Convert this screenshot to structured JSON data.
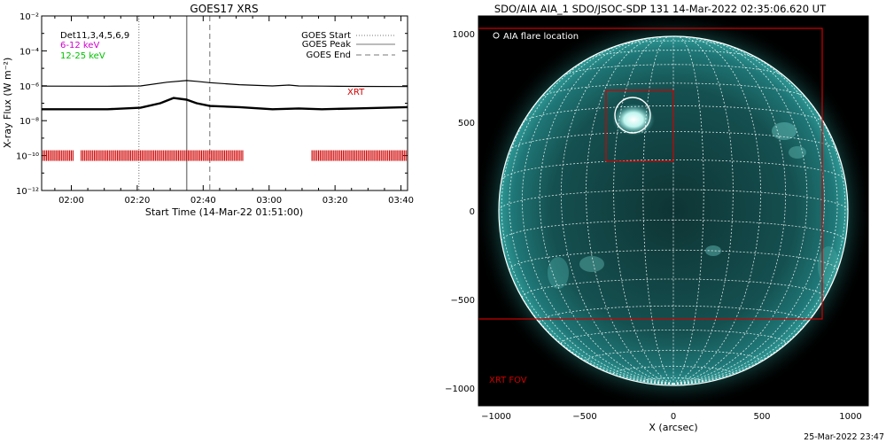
{
  "chart_data": [
    {
      "type": "line",
      "title": "GOES17 XRS",
      "xlabel": "Start Time (14-Mar-22 01:51:00)",
      "ylabel": "X-ray Flux (W m⁻²)",
      "y_scale": "log",
      "ylim": [
        1e-12,
        0.01
      ],
      "xlim_minutes": [
        0,
        111
      ],
      "x_ticks": [
        {
          "minute": 9,
          "label": "02:00"
        },
        {
          "minute": 29,
          "label": "02:20"
        },
        {
          "minute": 49,
          "label": "02:40"
        },
        {
          "minute": 69,
          "label": "03:00"
        },
        {
          "minute": 89,
          "label": "03:20"
        },
        {
          "minute": 109,
          "label": "03:40"
        }
      ],
      "y_ticks": [
        {
          "exp": -2,
          "label": "10⁻²"
        },
        {
          "exp": -4,
          "label": "10⁻⁴"
        },
        {
          "exp": -6,
          "label": "10⁻⁶"
        },
        {
          "exp": -8,
          "label": "10⁻⁸"
        },
        {
          "exp": -10,
          "label": "10⁻¹⁰"
        },
        {
          "exp": -12,
          "label": "10⁻¹²"
        }
      ],
      "series": [
        {
          "name": "Det11,3,4,5,6,9",
          "color": "#000000",
          "x": [
            0,
            20,
            30,
            38,
            44,
            47,
            51,
            60,
            70,
            75,
            78,
            85,
            95,
            111
          ],
          "y": [
            9.5e-07,
            9.4e-07,
            9.8e-07,
            1.6e-06,
            2e-06,
            1.8e-06,
            1.5e-06,
            1.15e-06,
            9.8e-07,
            1.1e-06,
            9.8e-07,
            9.5e-07,
            9.2e-07,
            9e-07
          ]
        },
        {
          "name": "",
          "color": "#000000",
          "x": [
            0,
            20,
            30,
            36,
            40,
            44,
            47,
            51,
            60,
            70,
            78,
            85,
            95,
            111
          ],
          "y": [
            4.5e-08,
            4.5e-08,
            5.5e-08,
            1e-07,
            2e-07,
            1.6e-07,
            1e-07,
            7e-08,
            6e-08,
            4.5e-08,
            5e-08,
            4.5e-08,
            5e-08,
            6e-08
          ]
        }
      ],
      "legend": [
        "Det11,3,4,5,6,9",
        "6-12 keV",
        "12-25 keV"
      ],
      "legend_colors": [
        "#000000",
        "#d000d0",
        "#00c000"
      ],
      "event_lines": [
        {
          "label": "GOES Start",
          "style": "dotted",
          "minute": 29.5
        },
        {
          "label": "GOES Peak",
          "style": "solid",
          "minute": 44
        },
        {
          "label": "GOES End",
          "style": "dashed",
          "minute": 51
        }
      ],
      "annotation": "XRT",
      "xrt_coverage_minutes": [
        [
          0,
          9.5
        ],
        [
          12,
          61
        ],
        [
          82,
          111
        ]
      ],
      "xrt_level": 1e-10
    },
    {
      "type": "image",
      "title": "SDO/AIA AIA_1 SDO/JSOC-SDP 131 14-Mar-2022 02:35:06.620 UT",
      "xlabel": "X (arcsec)",
      "ylabel": "",
      "xlim": [
        -1100,
        1100
      ],
      "ylim": [
        -1100,
        1100
      ],
      "x_ticks": [
        -1000,
        -500,
        0,
        500,
        1000
      ],
      "x_tick_labels": [
        "−1000",
        "−500",
        "0",
        "500",
        "1000"
      ],
      "y_ticks": [
        1000,
        500,
        0,
        -500,
        -1000
      ],
      "y_tick_labels": [
        "1000",
        "500",
        "0",
        "−500",
        "−1000"
      ],
      "legend": "AIA flare location",
      "legend_color": "#ffffff",
      "disk_radius": 985,
      "flare_location": {
        "x": -230,
        "y": 540
      },
      "flare_box": {
        "x0": -380,
        "x1": 0,
        "y0": 280,
        "y1": 680
      },
      "xrt_fov": {
        "x0": -1100,
        "x1": 840,
        "y0": -610,
        "y1": 1030
      },
      "xrt_fov_label": "XRT FOV",
      "fov_color": "#d00000"
    }
  ],
  "footer_timestamp": "25-Mar-2022 23:47"
}
